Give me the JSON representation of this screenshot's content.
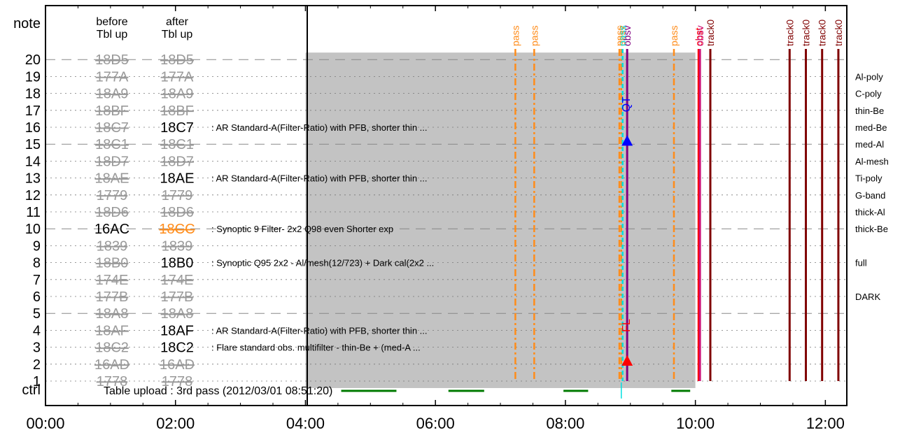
{
  "chart_data": {
    "type": "timeline",
    "x_range_hours": [
      0,
      12.33
    ],
    "x_ticks": [
      "00:00",
      "02:00",
      "04:00",
      "06:00",
      "08:00",
      "10:00",
      "12:00"
    ],
    "row_header": "note",
    "ctrl_label": "ctrl",
    "col_before": "before\nTbl up",
    "col_after": "after\nTbl up",
    "rows": [
      {
        "note": "1",
        "before": "1778",
        "after": "1778",
        "before_active": false,
        "after_state": "grey",
        "desc": "",
        "filter": ""
      },
      {
        "note": "2",
        "before": "16AD",
        "after": "16AD",
        "before_active": false,
        "after_state": "grey",
        "desc": "",
        "filter": ""
      },
      {
        "note": "3",
        "before": "18C2",
        "after": "18C2",
        "before_active": false,
        "after_state": "black",
        "desc": ": Flare standard obs. multifilter - thin-Be + (med-A ...",
        "filter": ""
      },
      {
        "note": "4",
        "before": "18AF",
        "after": "18AF",
        "before_active": false,
        "after_state": "black",
        "desc": ": AR Standard-A(Filter-Ratio) with PFB, shorter thin ...",
        "filter": ""
      },
      {
        "note": "5",
        "before": "18A8",
        "after": "18A8",
        "before_active": false,
        "after_state": "grey",
        "desc": "",
        "filter": ""
      },
      {
        "note": "6",
        "before": "177B",
        "after": "177B",
        "before_active": false,
        "after_state": "grey",
        "desc": "",
        "filter": "DARK"
      },
      {
        "note": "7",
        "before": "174E",
        "after": "174E",
        "before_active": false,
        "after_state": "grey",
        "desc": "",
        "filter": ""
      },
      {
        "note": "8",
        "before": "18B0",
        "after": "18B0",
        "before_active": false,
        "after_state": "black",
        "desc": ": Synoptic Q95 2x2 - Al/mesh(12/723) + Dark cal(2x2  ...",
        "filter": "full"
      },
      {
        "note": "9",
        "before": "1839",
        "after": "1839",
        "before_active": false,
        "after_state": "grey",
        "desc": "",
        "filter": ""
      },
      {
        "note": "10",
        "before": "16AC",
        "after": "18CC",
        "before_active": true,
        "after_state": "orange",
        "desc": ": Synoptic 9 Filter- 2x2 Q98 even Shorter exp",
        "filter": "thick-Be"
      },
      {
        "note": "11",
        "before": "18D6",
        "after": "18D6",
        "before_active": false,
        "after_state": "grey",
        "desc": "",
        "filter": "thick-Al"
      },
      {
        "note": "12",
        "before": "1779",
        "after": "1779",
        "before_active": false,
        "after_state": "grey",
        "desc": "",
        "filter": "G-band"
      },
      {
        "note": "13",
        "before": "18AE",
        "after": "18AE",
        "before_active": false,
        "after_state": "black",
        "desc": ": AR Standard-A(Filter-Ratio) with PFB, shorter thin ...",
        "filter": "Ti-poly"
      },
      {
        "note": "14",
        "before": "18D7",
        "after": "18D7",
        "before_active": false,
        "after_state": "grey",
        "desc": "",
        "filter": "Al-mesh"
      },
      {
        "note": "15",
        "before": "18C1",
        "after": "18C1",
        "before_active": false,
        "after_state": "grey",
        "desc": "",
        "filter": "med-Al"
      },
      {
        "note": "16",
        "before": "18C7",
        "after": "18C7",
        "before_active": false,
        "after_state": "black",
        "desc": ": AR Standard-A(Filter-Ratio) with PFB, shorter thin ...",
        "filter": "med-Be"
      },
      {
        "note": "17",
        "before": "18BF",
        "after": "18BF",
        "before_active": false,
        "after_state": "grey",
        "desc": "",
        "filter": "thin-Be"
      },
      {
        "note": "18",
        "before": "18A9",
        "after": "18A9",
        "before_active": false,
        "after_state": "grey",
        "desc": "",
        "filter": "C-poly"
      },
      {
        "note": "19",
        "before": "177A",
        "after": "177A",
        "before_active": false,
        "after_state": "grey",
        "desc": "",
        "filter": "Al-poly"
      },
      {
        "note": "20",
        "before": "18D5",
        "after": "18D5",
        "before_active": false,
        "after_state": "grey",
        "desc": "",
        "filter": ""
      }
    ],
    "table_upload_text": "Table upload : 3rd pass (2012/03/01 08:51:20)",
    "gray_region": [
      4.0,
      10.0
    ],
    "vlines": [
      {
        "t": 7.23,
        "label": "pass",
        "color": "#ff8c1a",
        "style": "dashdot"
      },
      {
        "t": 7.52,
        "label": "pass",
        "color": "#ff8c1a",
        "style": "dashdot"
      },
      {
        "t": 8.83,
        "label": "pass",
        "color": "#ff8c1a",
        "style": "dashdot"
      },
      {
        "t": 8.86,
        "label": "obsv",
        "color": "#ff8c1a",
        "style": "dashdot"
      },
      {
        "t": 8.88,
        "label": "pass",
        "color": "#00e0e0",
        "style": "dashed"
      },
      {
        "t": 8.95,
        "label": "obsv",
        "color": "#800080",
        "style": "solid"
      },
      {
        "t": 9.67,
        "label": "pass",
        "color": "#ff8c1a",
        "style": "dashdot"
      },
      {
        "t": 10.05,
        "label": "obst",
        "color": "#ff0000",
        "style": "solid"
      },
      {
        "t": 10.07,
        "label": "obsv",
        "color": "#cc1177",
        "style": "solid"
      },
      {
        "t": 10.23,
        "label": "track0",
        "color": "#800000",
        "style": "solid"
      },
      {
        "t": 11.45,
        "label": "track0",
        "color": "#800000",
        "style": "solid"
      },
      {
        "t": 11.7,
        "label": "track0",
        "color": "#800000",
        "style": "solid"
      },
      {
        "t": 11.95,
        "label": "track0",
        "color": "#800000",
        "style": "solid"
      },
      {
        "t": 12.2,
        "label": "track0",
        "color": "#800000",
        "style": "solid"
      }
    ],
    "markers": [
      {
        "t": 8.95,
        "row": 15.2,
        "label": "QT",
        "color": "#0000ff",
        "label_row": 16.9
      },
      {
        "t": 8.95,
        "row": 2.2,
        "label": "FL",
        "color": "#ff0000",
        "label_row": 3.9
      }
    ],
    "ctrl_segments": [
      [
        4.55,
        5.4
      ],
      [
        6.2,
        6.75
      ],
      [
        7.97,
        8.35
      ],
      [
        9.63,
        9.92
      ]
    ],
    "ctrl_tick": 8.86
  }
}
